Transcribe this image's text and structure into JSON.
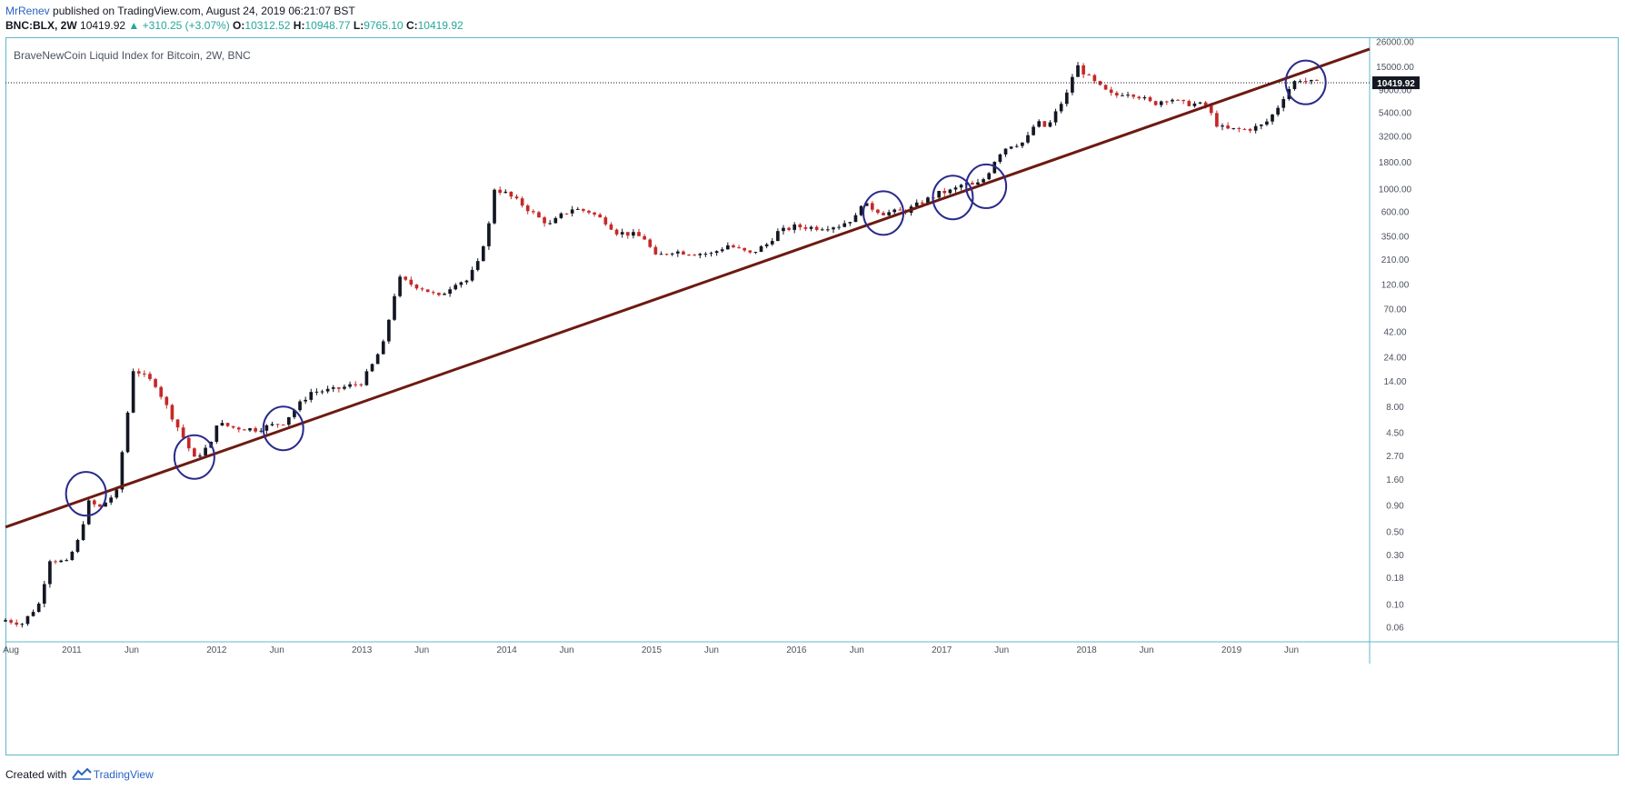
{
  "header": {
    "author": "MrRenev",
    "published_text": " published on TradingView.com, August 24, 2019 06:21:07 BST",
    "symbol": "BNC:BLX, 2W",
    "last": "10419.92",
    "change": "▲ +310.25 (+3.07%)",
    "o_label": "O:",
    "o_value": "10312.52",
    "h_label": "H:",
    "h_value": "10948.77",
    "l_label": "L:",
    "l_value": "9765.10",
    "c_label": "C:",
    "c_value": "10419.92"
  },
  "legend": {
    "title": "BraveNewCoin Liquid Index for Bitcoin, 2W, BNC"
  },
  "footer": {
    "created_with": "Created with",
    "brand": "TradingView"
  },
  "colors": {
    "up": "#131722",
    "down": "#c62828",
    "trendline": "#6d1a12",
    "circle": "#2a2a8c",
    "border": "#5fb9c7",
    "green": "#26a69a"
  },
  "chart_data": {
    "type": "candlestick",
    "scale": "log",
    "title": "BraveNewCoin Liquid Index for Bitcoin, 2W, BNC",
    "y_ticks": [
      "26000.00",
      "15000.00",
      "9000.00",
      "5400.00",
      "3200.00",
      "1800.00",
      "1000.00",
      "600.00",
      "350.00",
      "210.00",
      "120.00",
      "70.00",
      "42.00",
      "24.00",
      "14.00",
      "8.00",
      "4.50",
      "2.70",
      "1.60",
      "0.90",
      "0.50",
      "0.30",
      "0.18",
      "0.10",
      "0.06"
    ],
    "x_ticks": [
      "Aug",
      "2011",
      "Jun",
      "2012",
      "Jun",
      "2013",
      "Jun",
      "2014",
      "Jun",
      "2015",
      "Jun",
      "2016",
      "Jun",
      "2017",
      "Jun",
      "2018",
      "Jun",
      "2019",
      "Jun"
    ],
    "x_range": [
      "2010-07-18",
      "2019-12-15"
    ],
    "ylim": [
      0.045,
      28000
    ],
    "last_price": {
      "label": "10419.92",
      "value": 10419.92
    },
    "trendline": {
      "start": {
        "date": "2010-07-18",
        "price": 0.55
      },
      "end": {
        "date": "2019-12-15",
        "price": 22000
      }
    },
    "highlight_circles": [
      {
        "date": "2011-02-06",
        "price": 1.15
      },
      {
        "date": "2011-11-06",
        "price": 2.6
      },
      {
        "date": "2012-06-17",
        "price": 4.9
      },
      {
        "date": "2016-08-07",
        "price": 580
      },
      {
        "date": "2017-01-29",
        "price": 820
      },
      {
        "date": "2017-04-23",
        "price": 1050
      },
      {
        "date": "2019-07-07",
        "price": 10500
      }
    ],
    "anchors": [
      [
        "2010-07-18",
        0.07
      ],
      [
        "2010-08-29",
        0.065
      ],
      [
        "2010-10-10",
        0.1
      ],
      [
        "2010-11-07",
        0.27
      ],
      [
        "2010-12-19",
        0.25
      ],
      [
        "2011-01-16",
        0.4
      ],
      [
        "2011-02-13",
        0.95
      ],
      [
        "2011-03-13",
        0.85
      ],
      [
        "2011-04-24",
        1.2
      ],
      [
        "2011-05-22",
        7
      ],
      [
        "2011-06-05",
        18
      ],
      [
        "2011-06-19",
        17
      ],
      [
        "2011-07-31",
        13
      ],
      [
        "2011-08-28",
        8
      ],
      [
        "2011-10-09",
        4
      ],
      [
        "2011-11-06",
        2.5
      ],
      [
        "2011-11-20",
        2.8
      ],
      [
        "2011-12-18",
        3.5
      ],
      [
        "2012-01-01",
        5.5
      ],
      [
        "2012-02-12",
        5
      ],
      [
        "2012-04-08",
        4.8
      ],
      [
        "2012-06-17",
        5.6
      ],
      [
        "2012-07-29",
        8.5
      ],
      [
        "2012-08-26",
        11
      ],
      [
        "2012-10-21",
        11.5
      ],
      [
        "2012-12-30",
        13.5
      ],
      [
        "2013-01-27",
        20
      ],
      [
        "2013-02-24",
        32
      ],
      [
        "2013-03-24",
        95
      ],
      [
        "2013-04-07",
        135
      ],
      [
        "2013-05-05",
        120
      ],
      [
        "2013-06-02",
        110
      ],
      [
        "2013-07-14",
        90
      ],
      [
        "2013-08-25",
        125
      ],
      [
        "2013-09-22",
        130
      ],
      [
        "2013-10-20",
        190
      ],
      [
        "2013-11-17",
        450
      ],
      [
        "2013-12-01",
        1000
      ],
      [
        "2013-12-29",
        900
      ],
      [
        "2014-02-09",
        700
      ],
      [
        "2014-03-23",
        520
      ],
      [
        "2014-04-20",
        450
      ],
      [
        "2014-05-18",
        550
      ],
      [
        "2014-06-15",
        640
      ],
      [
        "2014-07-27",
        600
      ],
      [
        "2014-09-07",
        480
      ],
      [
        "2014-10-05",
        380
      ],
      [
        "2014-11-16",
        360
      ],
      [
        "2014-12-14",
        330
      ],
      [
        "2015-01-11",
        220
      ],
      [
        "2015-02-22",
        250
      ],
      [
        "2015-04-05",
        240
      ],
      [
        "2015-05-31",
        235
      ],
      [
        "2015-07-12",
        285
      ],
      [
        "2015-09-06",
        235
      ],
      [
        "2015-10-18",
        290
      ],
      [
        "2015-11-15",
        380
      ],
      [
        "2015-12-27",
        430
      ],
      [
        "2016-02-21",
        420
      ],
      [
        "2016-04-17",
        440
      ],
      [
        "2016-05-29",
        530
      ],
      [
        "2016-06-12",
        720
      ],
      [
        "2016-08-07",
        580
      ],
      [
        "2016-10-02",
        610
      ],
      [
        "2016-11-13",
        740
      ],
      [
        "2016-12-25",
        900
      ],
      [
        "2017-01-29",
        960
      ],
      [
        "2017-02-26",
        1120
      ],
      [
        "2017-03-26",
        1050
      ],
      [
        "2017-04-23",
        1300
      ],
      [
        "2017-05-21",
        2100
      ],
      [
        "2017-06-18",
        2600
      ],
      [
        "2017-07-30",
        2800
      ],
      [
        "2017-08-27",
        4400
      ],
      [
        "2017-09-24",
        3800
      ],
      [
        "2017-10-22",
        6000
      ],
      [
        "2017-11-19",
        9000
      ],
      [
        "2017-12-03",
        16000
      ],
      [
        "2017-12-17",
        14000
      ],
      [
        "2018-01-14",
        11000
      ],
      [
        "2018-02-11",
        9000
      ],
      [
        "2018-03-11",
        7700
      ],
      [
        "2018-04-08",
        8500
      ],
      [
        "2018-05-06",
        8000
      ],
      [
        "2018-06-17",
        6500
      ],
      [
        "2018-07-29",
        7500
      ],
      [
        "2018-08-26",
        6600
      ],
      [
        "2018-10-07",
        6500
      ],
      [
        "2018-11-04",
        6200
      ],
      [
        "2018-11-18",
        4300
      ],
      [
        "2018-12-16",
        3700
      ],
      [
        "2019-02-10",
        3700
      ],
      [
        "2019-03-24",
        4100
      ],
      [
        "2019-04-21",
        5500
      ],
      [
        "2019-05-19",
        8500
      ],
      [
        "2019-06-16",
        11500
      ],
      [
        "2019-07-14",
        10600
      ],
      [
        "2019-08-11",
        10400
      ]
    ]
  }
}
